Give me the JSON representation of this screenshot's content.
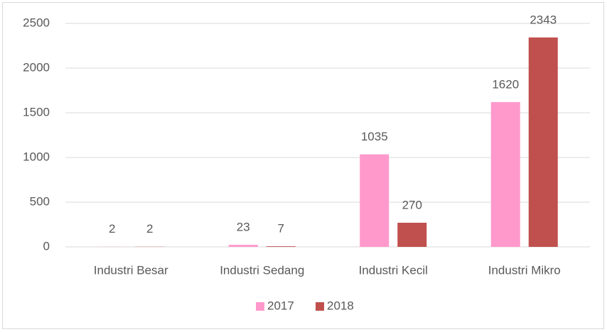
{
  "chart_data": {
    "type": "bar",
    "categories": [
      "Industri Besar",
      "Industri Sedang",
      "Industri Kecil",
      "Industri Mikro"
    ],
    "series": [
      {
        "name": "2017",
        "color": "#ff99cc",
        "values": [
          2,
          23,
          1035,
          1620
        ]
      },
      {
        "name": "2018",
        "color": "#c0504d",
        "values": [
          2,
          7,
          270,
          2343
        ]
      }
    ],
    "ylim": [
      0,
      2500
    ],
    "yticks": [
      0,
      500,
      1000,
      1500,
      2000,
      2500
    ],
    "grid": true,
    "legend": "bottom"
  }
}
